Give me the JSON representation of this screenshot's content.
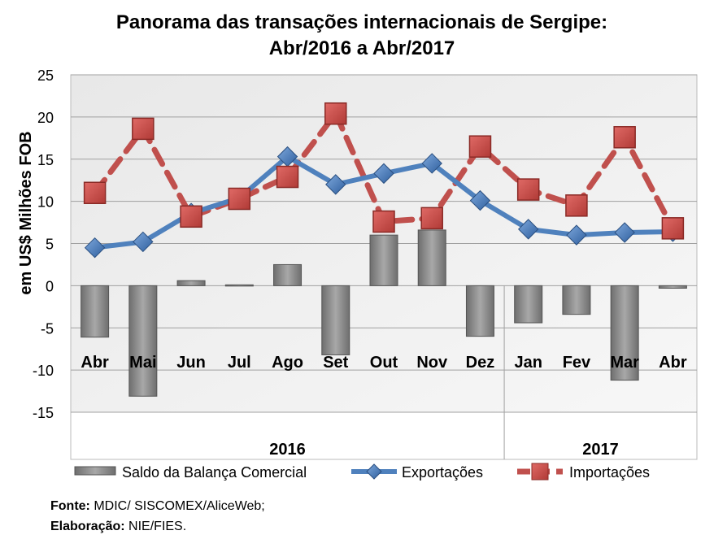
{
  "chart_data": {
    "type": "bar+line",
    "title": [
      "Panorama das transações internacionais de Sergipe:",
      "Abr/2016 a Abr/2017"
    ],
    "ylabel": "em US$ Milhões FOB",
    "ylim": [
      -15,
      25
    ],
    "yticks": [
      25,
      20,
      15,
      10,
      5,
      0,
      -5,
      -10,
      -15
    ],
    "categories": [
      "Abr",
      "Mai",
      "Jun",
      "Jul",
      "Ago",
      "Set",
      "Out",
      "Nov",
      "Dez",
      "Jan",
      "Fev",
      "Mar",
      "Abr"
    ],
    "groups": [
      {
        "label": "2016",
        "count": 9
      },
      {
        "label": "2017",
        "count": 4
      }
    ],
    "grid": true,
    "legend_position": "bottom",
    "series": [
      {
        "name": "Saldo da Balança Comercial",
        "kind": "bar",
        "color": "#8c8c8c",
        "values": [
          -6.1,
          -13.1,
          0.6,
          0.1,
          2.5,
          -8.2,
          6.0,
          6.6,
          -6.0,
          -4.4,
          -3.4,
          -11.2,
          -0.3
        ]
      },
      {
        "name": "Exportações",
        "kind": "line",
        "color": "#4f81bd",
        "values": [
          4.5,
          5.2,
          8.6,
          10.4,
          15.3,
          12.0,
          13.3,
          14.5,
          10.1,
          6.7,
          6.0,
          6.3,
          6.4
        ]
      },
      {
        "name": "Importações",
        "kind": "line-dashed",
        "color": "#c0504d",
        "values": [
          11.0,
          18.6,
          8.2,
          10.3,
          12.9,
          20.4,
          7.6,
          8.0,
          16.5,
          11.4,
          9.5,
          17.6,
          6.8
        ]
      }
    ]
  },
  "source": {
    "label": "Fonte:",
    "value": "MDIC/ SISCOMEX/AliceWeb;"
  },
  "elaboration": {
    "label": "Elaboração:",
    "value": "NIE/FIES."
  }
}
